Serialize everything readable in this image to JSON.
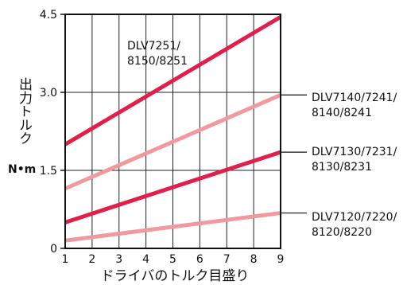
{
  "chart_data": {
    "type": "line",
    "x": [
      1,
      9
    ],
    "xlim": [
      1,
      9
    ],
    "ylim": [
      0,
      4.5
    ],
    "x_ticks": [
      "1",
      "2",
      "3",
      "4",
      "5",
      "6",
      "7",
      "8",
      "9"
    ],
    "y_ticks": [
      "0",
      "1.5",
      "3.0",
      "4.5"
    ],
    "y_tick_values": [
      0,
      1.5,
      3.0,
      4.5
    ],
    "xlabel": "ドライバのトルク目盛り",
    "ylabel": "出力トルク",
    "yunit": "N•m",
    "grid": true,
    "series": [
      {
        "label_lines": [
          "DLV7251/",
          "8150/8251"
        ],
        "values": [
          2.0,
          4.45
        ],
        "color": "#e0204a"
      },
      {
        "label_lines": [
          "DLV7140/7241/",
          "8140/8241"
        ],
        "values": [
          1.15,
          2.95
        ],
        "color": "#f09aa0"
      },
      {
        "label_lines": [
          "DLV7130/7231/",
          "8130/8231"
        ],
        "values": [
          0.5,
          1.85
        ],
        "color": "#e0204a"
      },
      {
        "label_lines": [
          "DLV7120/7220/",
          "8120/8220"
        ],
        "values": [
          0.15,
          0.68
        ],
        "color": "#f09aa0"
      }
    ]
  }
}
